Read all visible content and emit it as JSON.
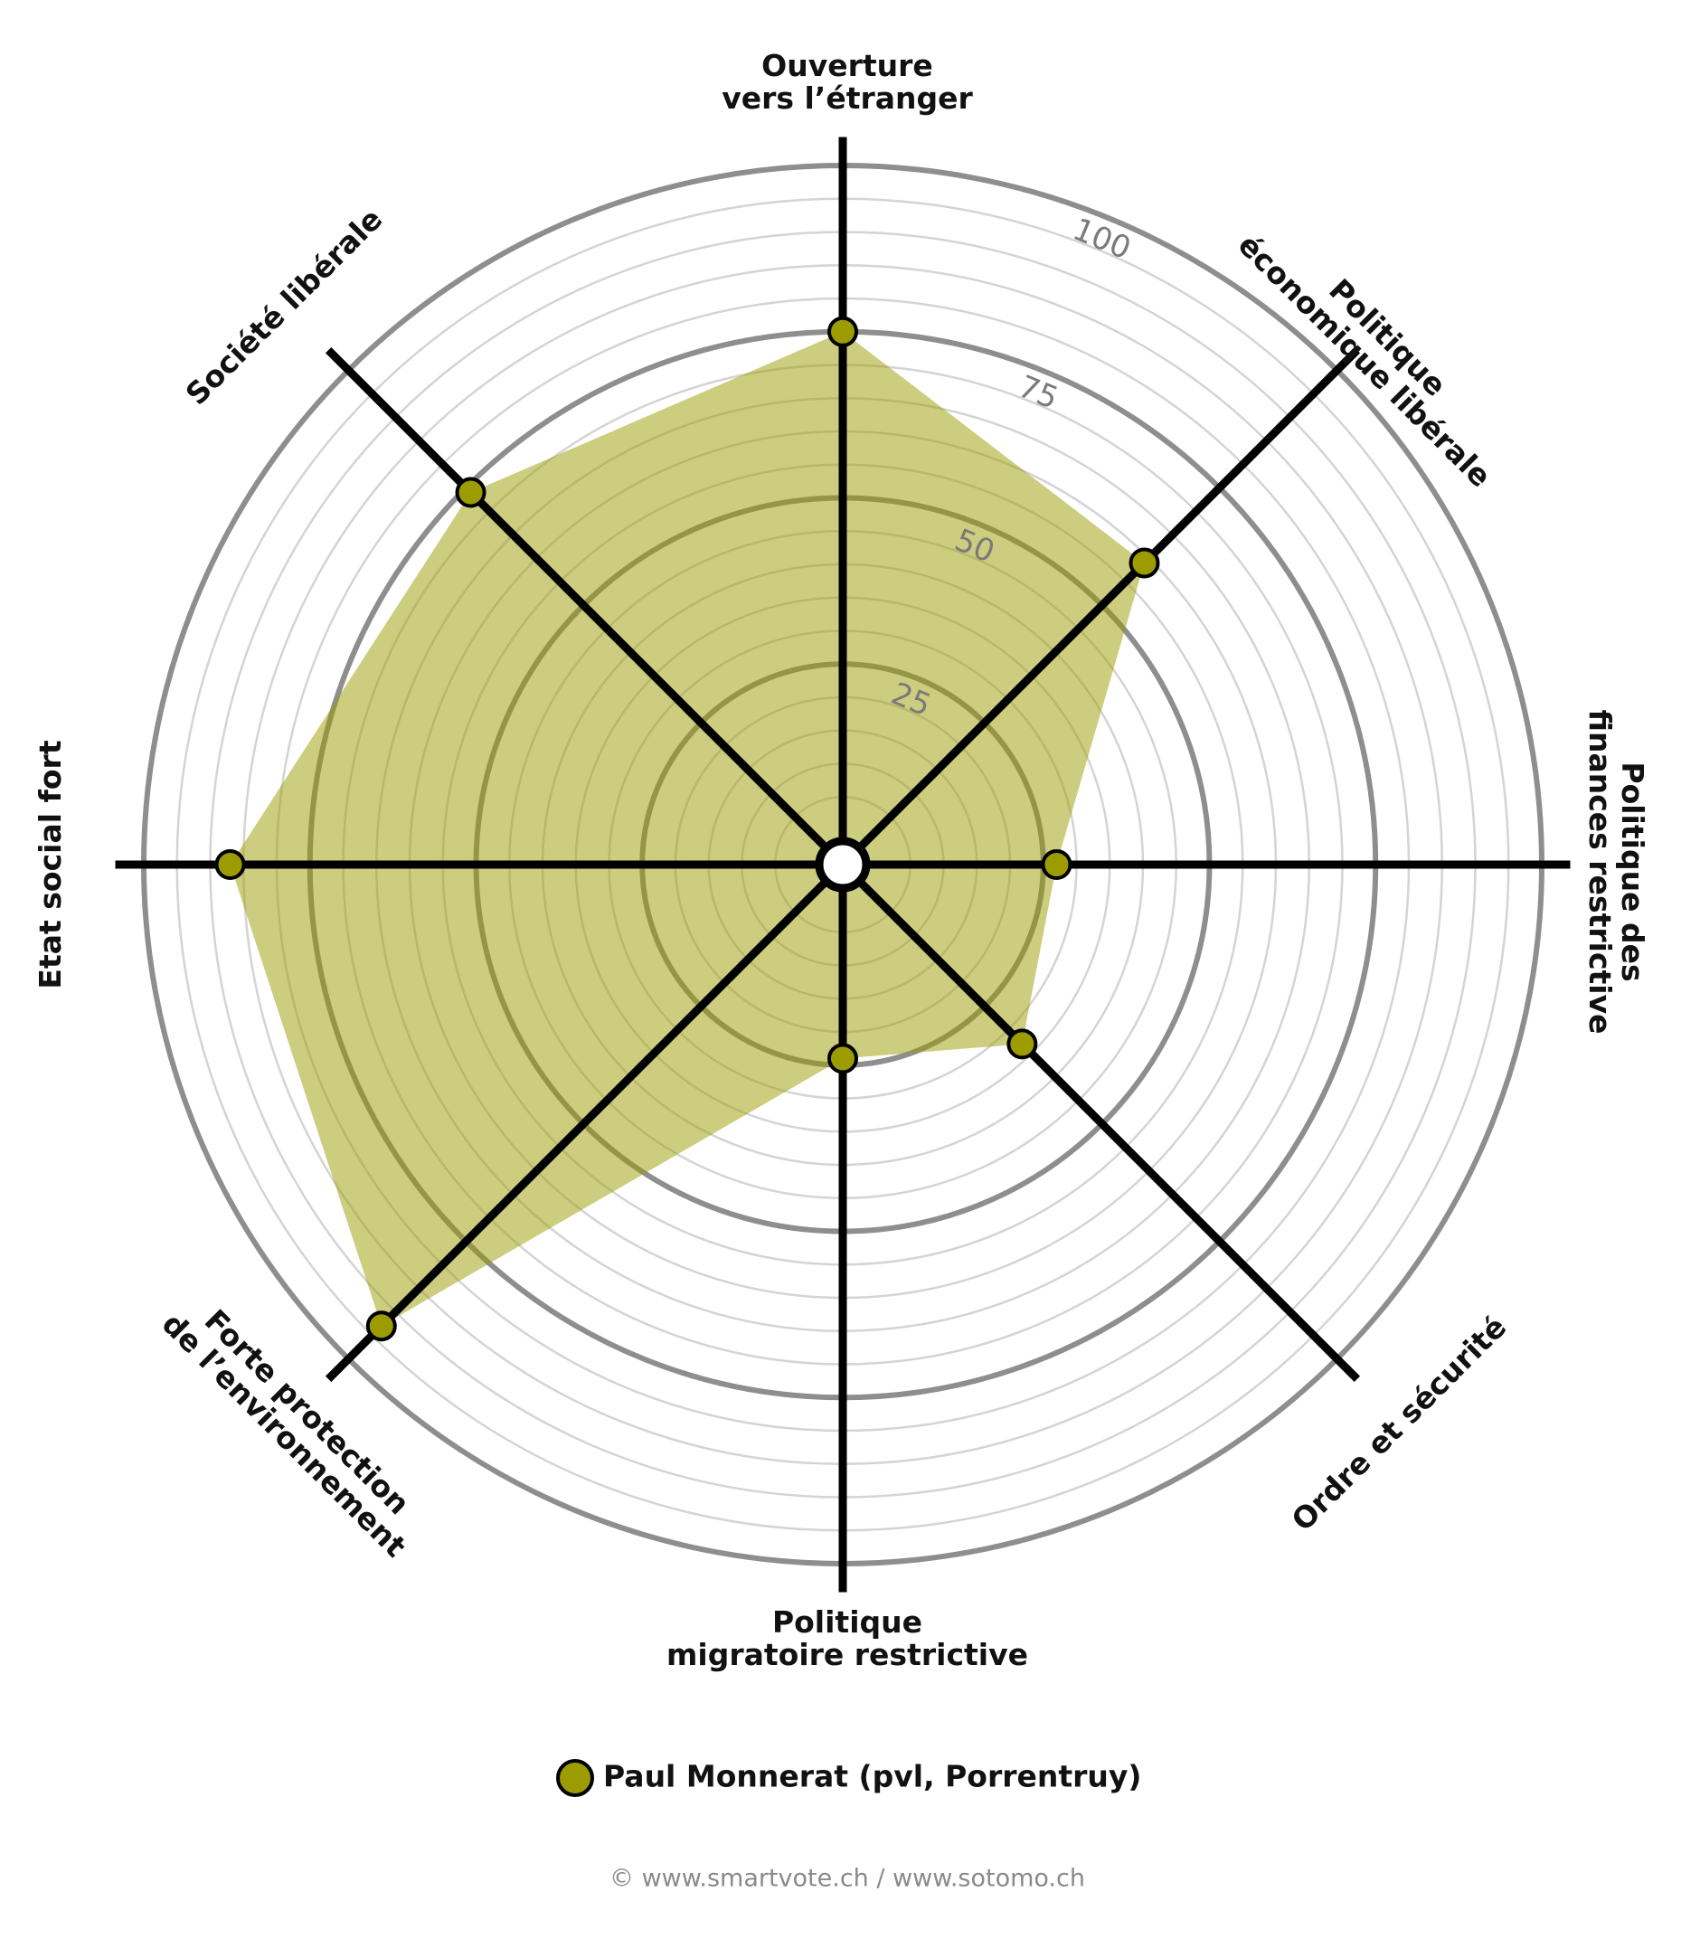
{
  "chart_data": {
    "type": "radar",
    "categories": [
      [
        "Ouverture",
        "vers l’étranger"
      ],
      [
        "Politique",
        "économique libérale"
      ],
      [
        "Politique des",
        "finances restrictive"
      ],
      [
        "Ordre et sécurité"
      ],
      [
        "Politique",
        "migratoire restrictive"
      ],
      [
        "Forte protection",
        "de l’environnement"
      ],
      [
        "Etat social fort"
      ],
      [
        "Société libérale"
      ]
    ],
    "series": [
      {
        "name": "Paul Monnerat (pvl, Porrentruy)",
        "color": "#9c9c00",
        "values": [
          75,
          59,
          27,
          33,
          24,
          93,
          87,
          74
        ]
      }
    ],
    "rlim": [
      0,
      100
    ],
    "rticks": [
      25,
      50,
      75,
      100
    ],
    "footer": "© www.smartvote.ch / www.sotomo.ch"
  }
}
